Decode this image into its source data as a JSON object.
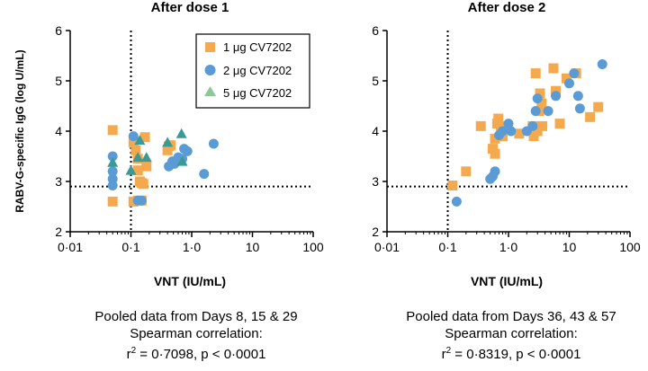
{
  "figure": {
    "y_axis_label": "RABV-G-specific IgG (log U/mL)",
    "colors": {
      "1ug": "#F5A94E",
      "2ug": "#5B9BD5",
      "5ug": "#70AD8F",
      "5ug_dark": "#3A9A96",
      "reference": "#000000"
    }
  },
  "legend": {
    "items": [
      {
        "label": "1 μg CV7202",
        "shape": "square",
        "color": "#F5A94E"
      },
      {
        "label": "2 μg CV7202",
        "shape": "circle",
        "color": "#5B9BD5"
      },
      {
        "label": "5 μg CV7202",
        "shape": "triangle",
        "color": "#8FC79A"
      }
    ]
  },
  "captions": [
    {
      "line1": "Pooled data from Days 8, 15 & 29",
      "line2": "Spearman correlation:",
      "r2_prefix": "r",
      "r2_sup": "2",
      "r2_rest": " = 0·7098, p < 0·0001"
    },
    {
      "line1": "Pooled data from Days 36, 43 & 57",
      "line2": "Spearman correlation:",
      "r2_prefix": "r",
      "r2_sup": "2",
      "r2_rest": " = 0·8319, p < 0·0001"
    }
  ],
  "chart_data": [
    {
      "type": "scatter",
      "title": "After dose 1",
      "xlabel": "VNT (IU/mL)",
      "ylabel": "RABV-G-specific IgG (log U/mL)",
      "x_scale": "log",
      "xlim": [
        0.01,
        100
      ],
      "ylim": [
        2,
        6
      ],
      "x_ticks": [
        0.01,
        0.1,
        1,
        10,
        100
      ],
      "x_tick_labels": [
        "0·01",
        "0·1",
        "1·0",
        "10",
        "100"
      ],
      "y_ticks": [
        2,
        3,
        4,
        5,
        6
      ],
      "y_tick_labels": [
        "2",
        "3",
        "4",
        "5",
        "6"
      ],
      "reference_lines": {
        "x": 0.1,
        "y": 2.9
      },
      "series": [
        {
          "name": "1 μg CV7202",
          "marker": "square",
          "points": [
            [
              0.05,
              4.02
            ],
            [
              0.05,
              2.6
            ],
            [
              0.11,
              3.78
            ],
            [
              0.12,
              3.62
            ],
            [
              0.11,
              2.6
            ],
            [
              0.13,
              3.45
            ],
            [
              0.13,
              3.22
            ],
            [
              0.14,
              3.0
            ],
            [
              0.15,
              2.97
            ],
            [
              0.16,
              2.95
            ],
            [
              0.17,
              3.88
            ],
            [
              0.13,
              2.62
            ],
            [
              0.15,
              2.62
            ],
            [
              0.18,
              3.3
            ],
            [
              0.4,
              3.62
            ],
            [
              0.42,
              3.7
            ],
            [
              0.45,
              3.72
            ]
          ]
        },
        {
          "name": "2 μg CV7202",
          "marker": "circle",
          "points": [
            [
              0.05,
              3.5
            ],
            [
              0.05,
              3.2
            ],
            [
              0.05,
              3.05
            ],
            [
              0.05,
              2.92
            ],
            [
              0.11,
              3.9
            ],
            [
              0.13,
              2.62
            ],
            [
              0.15,
              2.62
            ],
            [
              0.42,
              3.3
            ],
            [
              0.48,
              3.4
            ],
            [
              0.52,
              3.35
            ],
            [
              0.6,
              3.48
            ],
            [
              0.7,
              3.45
            ],
            [
              0.75,
              3.65
            ],
            [
              0.85,
              3.6
            ],
            [
              1.6,
              3.15
            ],
            [
              2.3,
              3.75
            ]
          ]
        },
        {
          "name": "5 μg CV7202",
          "marker": "triangle",
          "points": [
            [
              0.05,
              3.38
            ],
            [
              0.1,
              3.22
            ],
            [
              0.13,
              3.48
            ],
            [
              0.14,
              3.82
            ],
            [
              0.18,
              3.48
            ],
            [
              0.4,
              3.78
            ],
            [
              0.68,
              3.95
            ],
            [
              0.7,
              3.4
            ]
          ]
        }
      ]
    },
    {
      "type": "scatter",
      "title": "After dose 2",
      "xlabel": "VNT (IU/mL)",
      "ylabel": "",
      "x_scale": "log",
      "xlim": [
        0.01,
        100
      ],
      "ylim": [
        2,
        6
      ],
      "x_ticks": [
        0.01,
        0.1,
        1,
        10,
        100
      ],
      "x_tick_labels": [
        "0·01",
        "0·1",
        "1·0",
        "10",
        "100"
      ],
      "y_ticks": [
        2,
        3,
        4,
        5,
        6
      ],
      "y_tick_labels": [
        "2",
        "3",
        "4",
        "5",
        "6"
      ],
      "reference_lines": {
        "x": 0.1,
        "y": 2.9
      },
      "series": [
        {
          "name": "1 μg CV7202",
          "marker": "square",
          "points": [
            [
              0.12,
              2.92
            ],
            [
              0.2,
              3.2
            ],
            [
              0.35,
              4.1
            ],
            [
              0.55,
              3.65
            ],
            [
              0.6,
              3.85
            ],
            [
              0.6,
              3.55
            ],
            [
              0.65,
              4.15
            ],
            [
              0.68,
              4.25
            ],
            [
              0.75,
              4.1
            ],
            [
              0.8,
              3.9
            ],
            [
              1.5,
              3.95
            ],
            [
              2.5,
              4.1
            ],
            [
              2.6,
              3.9
            ],
            [
              2.8,
              5.15
            ],
            [
              3.0,
              4.0
            ],
            [
              3.2,
              4.4
            ],
            [
              3.3,
              4.75
            ],
            [
              3.5,
              4.55
            ],
            [
              3.6,
              4.1
            ],
            [
              5.5,
              5.25
            ],
            [
              6.0,
              4.8
            ],
            [
              7.0,
              4.15
            ],
            [
              9.0,
              5.05
            ],
            [
              13.0,
              5.15
            ],
            [
              22.0,
              4.28
            ],
            [
              30.0,
              4.48
            ]
          ]
        },
        {
          "name": "2 μg CV7202",
          "marker": "circle",
          "points": [
            [
              0.14,
              2.6
            ],
            [
              0.5,
              3.05
            ],
            [
              0.55,
              3.1
            ],
            [
              0.6,
              3.2
            ],
            [
              0.7,
              3.92
            ],
            [
              0.8,
              4.0
            ],
            [
              1.0,
              4.15
            ],
            [
              1.1,
              4.0
            ],
            [
              2.0,
              4.0
            ],
            [
              2.5,
              4.1
            ],
            [
              2.8,
              4.4
            ],
            [
              3.0,
              4.65
            ],
            [
              4.5,
              4.4
            ],
            [
              6.0,
              4.7
            ],
            [
              10.0,
              4.95
            ],
            [
              12.0,
              5.15
            ],
            [
              14.0,
              4.7
            ],
            [
              15.0,
              4.45
            ],
            [
              35.0,
              5.33
            ]
          ]
        },
        {
          "name": "5 μg CV7202",
          "marker": "triangle",
          "points": []
        }
      ]
    }
  ]
}
